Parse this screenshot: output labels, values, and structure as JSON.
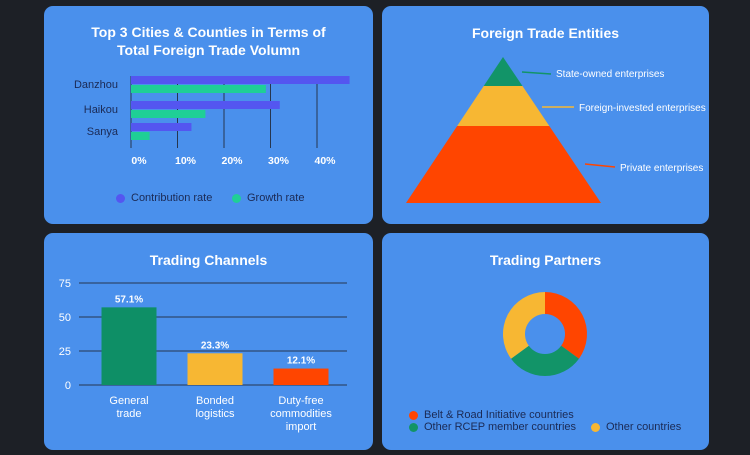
{
  "colors": {
    "contribution": "#5456f0",
    "growth": "#1fcf96",
    "state": "#129468",
    "foreign": "#f7b733",
    "private": "#ff4500",
    "channel_general": "#0e8f66",
    "channel_bonded": "#f7b733",
    "channel_dutyfree": "#ff4500",
    "belt_road": "#ff4500",
    "rcep": "#129468",
    "other": "#f7b733"
  },
  "panel1": {
    "title_line1": "Top 3 Cities & Counties in Terms of",
    "title_line2": "Total Foreign Trade Volumn"
  },
  "panel2": {
    "title": "Foreign Trade Entities"
  },
  "panel3": {
    "title": "Trading Channels"
  },
  "panel4": {
    "title": "Trading Partners"
  },
  "chart_data": [
    {
      "type": "bar",
      "orientation": "horizontal",
      "title": "Top 3 Cities & Counties in Terms of Total Foreign Trade Volumn",
      "categories": [
        "Danzhou",
        "Haikou",
        "Sanya"
      ],
      "series": [
        {
          "name": "Contribution rate",
          "values": [
            47,
            32,
            13
          ]
        },
        {
          "name": "Growth rate",
          "values": [
            29,
            16,
            4
          ]
        }
      ],
      "xlim": [
        0,
        47
      ],
      "xticks": [
        0,
        10,
        20,
        30,
        40
      ],
      "xtick_labels": [
        "0%",
        "10%",
        "20%",
        "30%",
        "40%"
      ],
      "grid": "vertical",
      "legend_position": "bottom"
    },
    {
      "type": "pyramid",
      "title": "Foreign Trade Entities",
      "levels": [
        "State-owned enterprises",
        "Foreign-invested enterprises",
        "Private enterprises"
      ]
    },
    {
      "type": "bar",
      "title": "Trading Channels",
      "categories": [
        [
          "General",
          "trade"
        ],
        [
          "Bonded",
          "logistics"
        ],
        [
          "Duty-free",
          "commodities",
          "import"
        ]
      ],
      "values": [
        57.1,
        23.3,
        12.1
      ],
      "value_labels": [
        "57.1%",
        "23.3%",
        "12.1%"
      ],
      "ylim": [
        0,
        75
      ],
      "yticks": [
        0,
        25,
        50,
        75
      ],
      "grid": "horizontal"
    },
    {
      "type": "pie",
      "title": "Trading Partners",
      "donut": true,
      "slices": [
        {
          "name": "Belt & Road Initiative countries",
          "value": 35
        },
        {
          "name": "Other RCEP member countries",
          "value": 30
        },
        {
          "name": "Other countries",
          "value": 35
        }
      ]
    }
  ]
}
